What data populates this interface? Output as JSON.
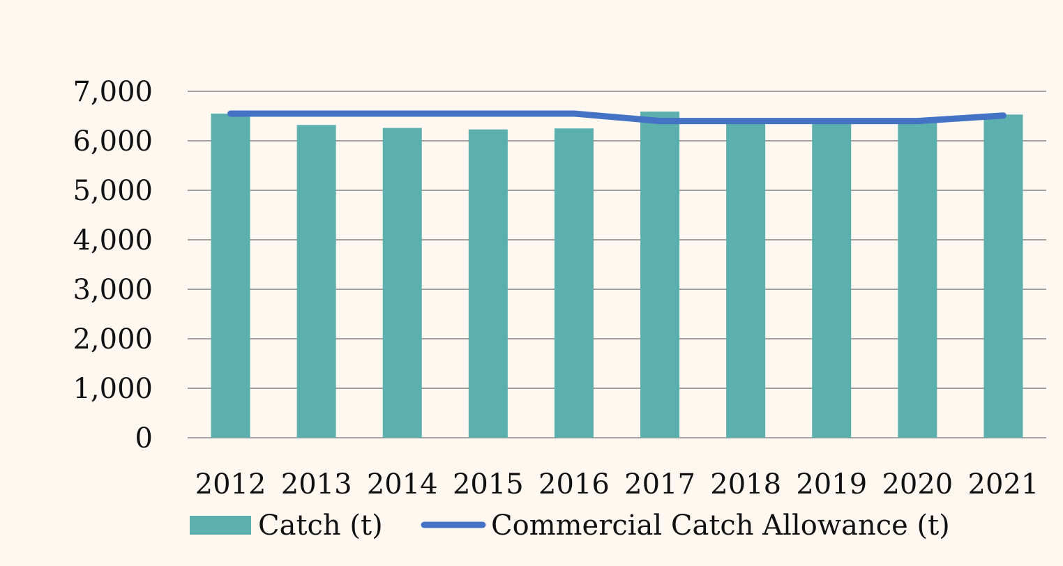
{
  "chart_data": {
    "type": "bar",
    "categories": [
      "2012",
      "2013",
      "2014",
      "2015",
      "2016",
      "2017",
      "2018",
      "2019",
      "2020",
      "2021"
    ],
    "series": [
      {
        "name": "Catch (t)",
        "type": "bar",
        "color": "#5bafac",
        "values": [
          6550,
          6320,
          6260,
          6230,
          6250,
          6590,
          6450,
          6430,
          6420,
          6530
        ]
      },
      {
        "name": "Commercial Catch Allowance (t)",
        "type": "line",
        "color": "#4472c4",
        "values": [
          6550,
          6550,
          6550,
          6550,
          6550,
          6400,
          6400,
          6400,
          6400,
          6510
        ]
      }
    ],
    "y_ticks": [
      "0",
      "1,000",
      "2,000",
      "3,000",
      "4,000",
      "5,000",
      "6,000",
      "7,000"
    ],
    "ylim": [
      0,
      7000
    ],
    "title": "",
    "xlabel": "",
    "ylabel": "",
    "grid": true,
    "legend_position": "bottom"
  }
}
